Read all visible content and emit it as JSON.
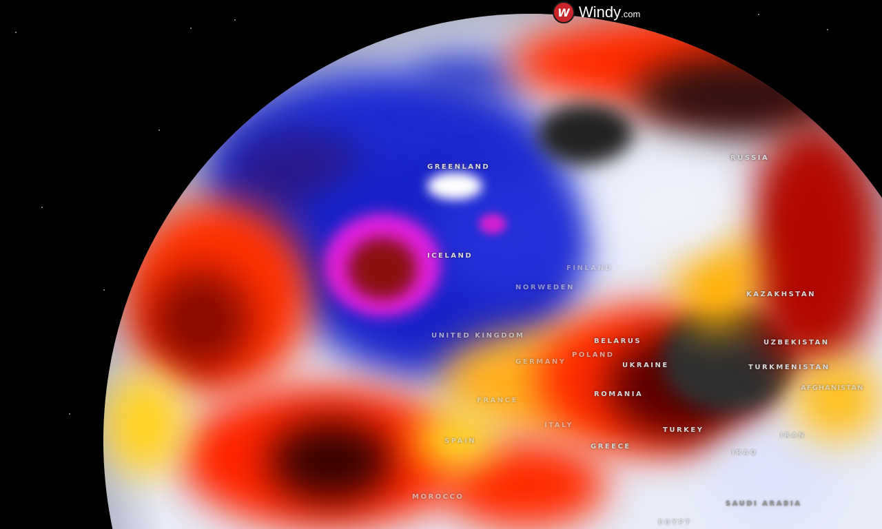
{
  "brand": {
    "name": "Windy",
    "suffix": ".com",
    "logo_color": "#c8262a"
  },
  "map": {
    "view": "globe",
    "overlay_colors": {
      "cold": "#1e2ad0",
      "very_cold": "#e020e0",
      "neutral": "#e8ecf8",
      "warm": "#ffe020",
      "hot": "#ff2000",
      "very_hot": "#3a0000",
      "extreme": "#303030"
    },
    "labels": [
      "GREENLAND",
      "ICELAND",
      "RUSSIA",
      "FINLAND",
      "NORWEDEN",
      "UNITED KINGDOM",
      "BELARUS",
      "POLAND",
      "GERMANY",
      "UKRAINE",
      "KAZAKHSTAN",
      "UZBEKISTAN",
      "TURKMENISTAN",
      "AFGHANISTAN",
      "FRANCE",
      "ROMANIA",
      "SPAIN",
      "ITALY",
      "GREECE",
      "TURKEY",
      "IRAN",
      "IRAQ",
      "MOROCCO",
      "SAUDI ARABIA",
      "EGYPT"
    ]
  }
}
